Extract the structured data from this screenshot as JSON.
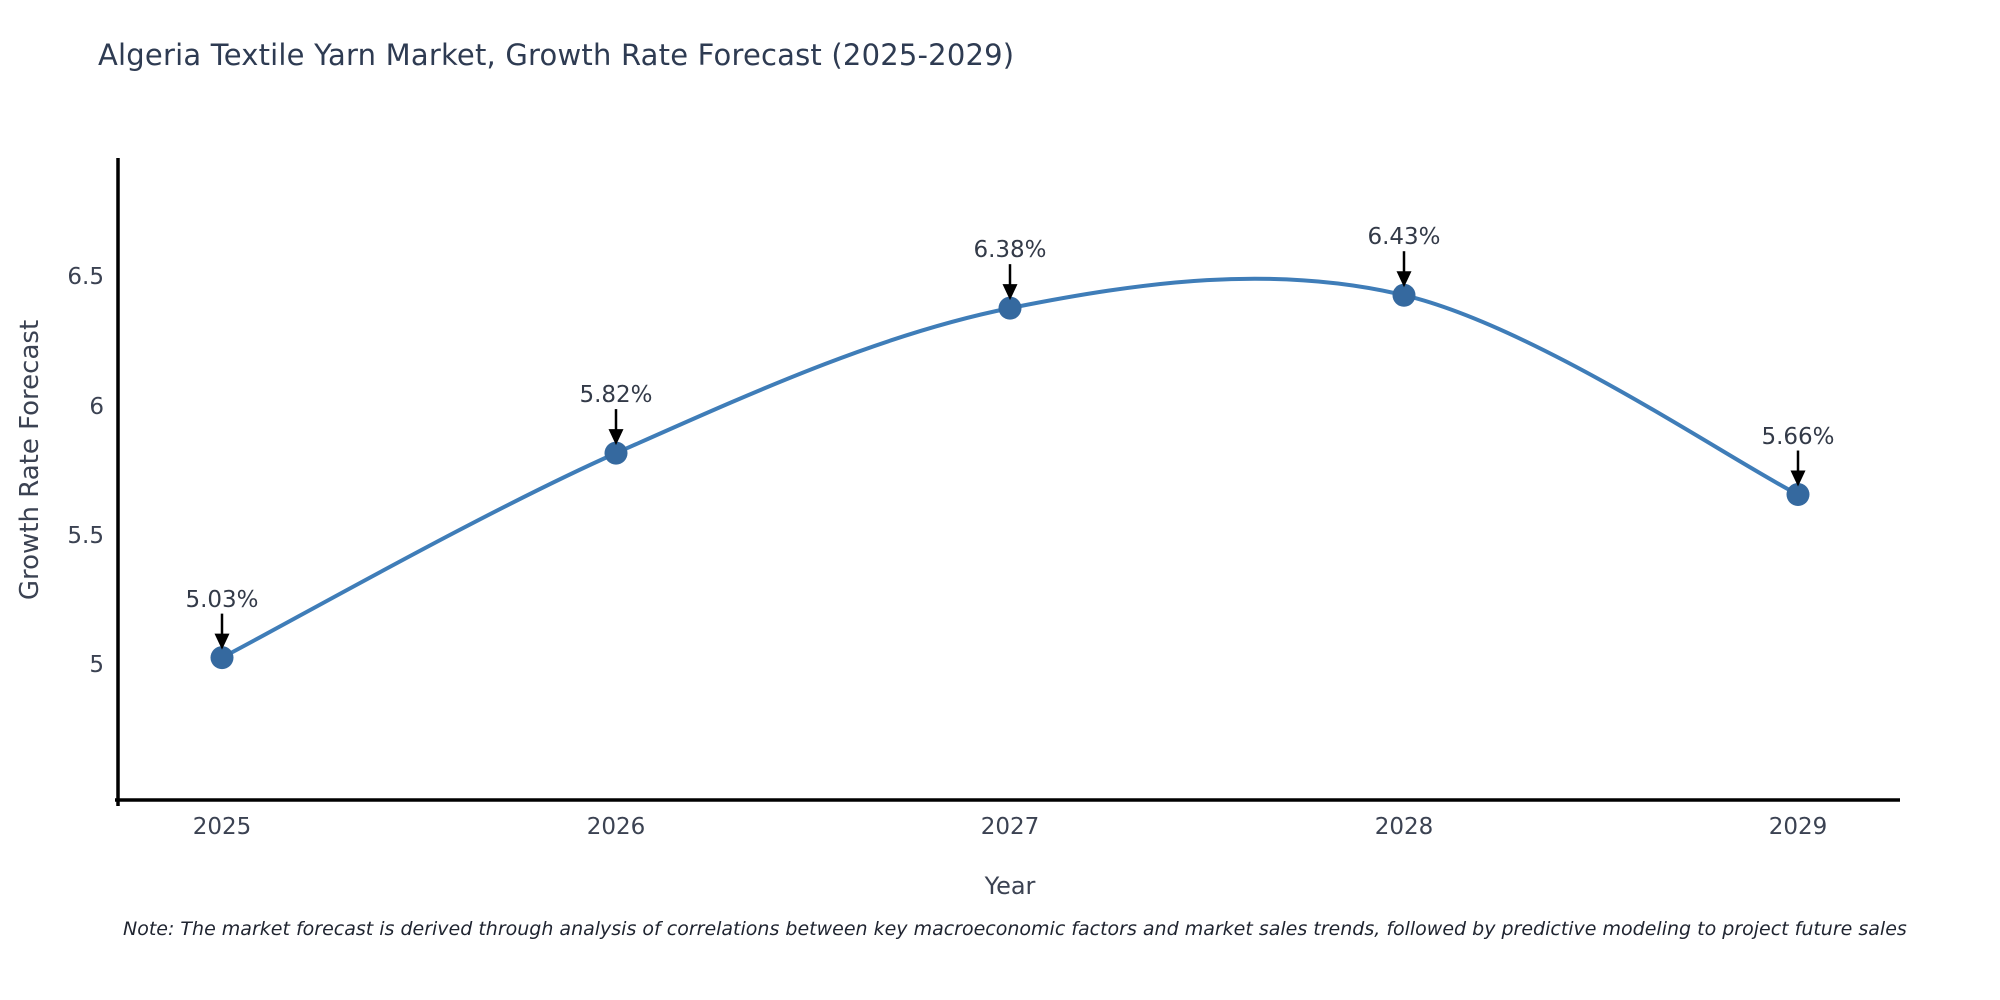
{
  "page": {
    "title": "Algeria Textile Yarn Market, Growth Rate Forecast (2025-2029)",
    "note": "Note: The market forecast is derived through analysis of correlations between key macroeconomic factors and market sales trends, followed by predictive modeling to project future sales"
  },
  "chart_data": {
    "type": "line",
    "title": "Algeria Textile Yarn Market, Growth Rate Forecast (2025-2029)",
    "xlabel": "Year",
    "ylabel": "Growth Rate Forecast",
    "categories": [
      "2025",
      "2026",
      "2027",
      "2028",
      "2029"
    ],
    "series": [
      {
        "name": "Growth Rate Forecast",
        "values": [
          5.03,
          5.82,
          6.38,
          6.43,
          5.66
        ],
        "point_labels": [
          "5.03%",
          "5.82%",
          "6.38%",
          "6.43%",
          "5.66%"
        ]
      }
    ],
    "yticks": [
      5,
      5.5,
      6,
      6.5
    ],
    "ylim": [
      4.48,
      6.96
    ],
    "line_shape": "spline",
    "grid": false,
    "legend": "none",
    "annotations": "value labels with downward arrows above each marker",
    "colors": {
      "line": "#3f7db8",
      "marker": "#35699f",
      "axis_line": "#000000",
      "arrow": "#000000",
      "title_text": "#2e3b52",
      "axis_text": "#3b4252",
      "background": "#ffffff"
    }
  }
}
